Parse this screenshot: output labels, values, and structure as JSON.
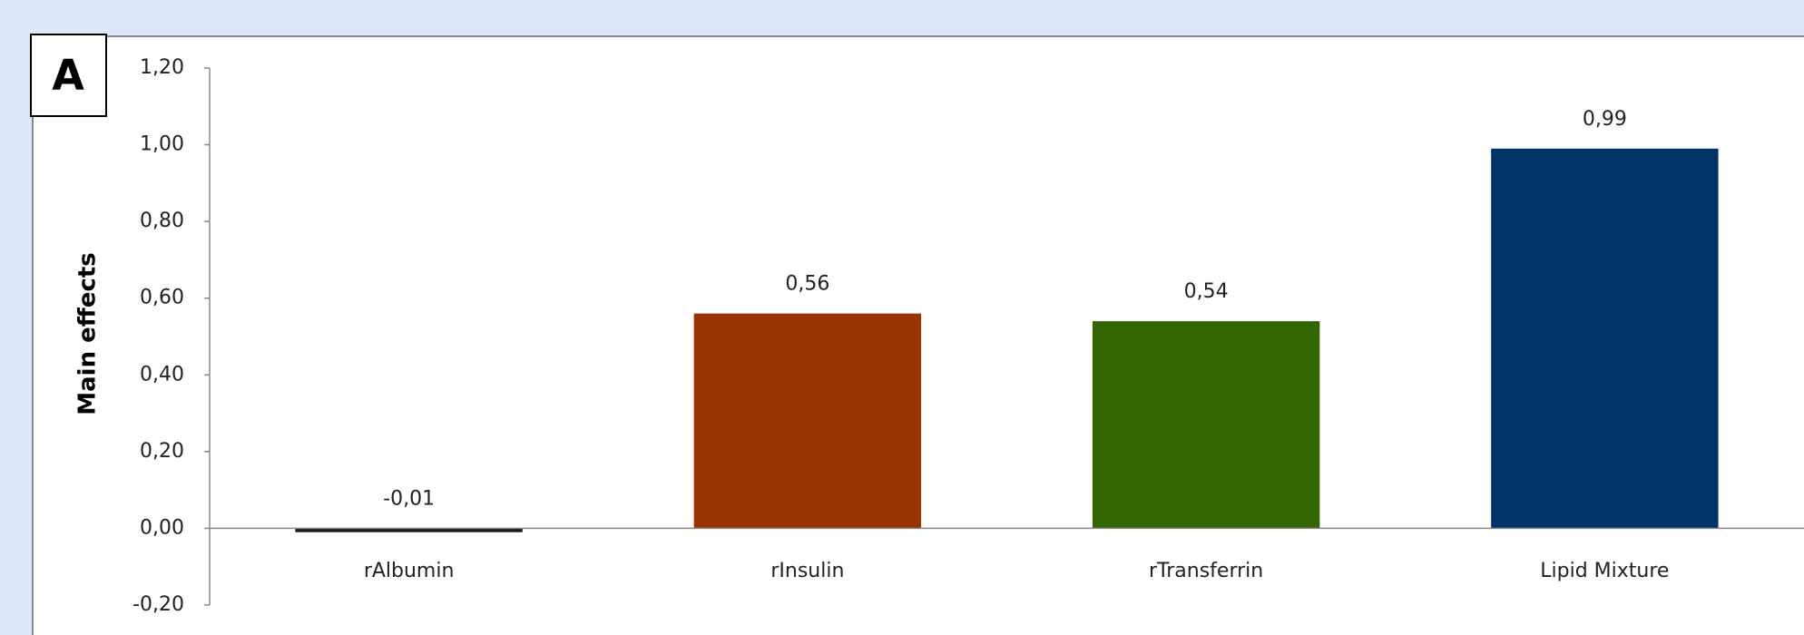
{
  "chart_data": {
    "type": "bar",
    "panel_label": "A",
    "y_label": "Main effects",
    "categories": [
      "rAlbumin",
      "rInsulin",
      "rTransferrin",
      "Lipid Mixture"
    ],
    "values": [
      -0.01,
      0.56,
      0.54,
      0.99
    ],
    "value_labels": [
      "-0,01",
      "0,56",
      "0,54",
      "0,99"
    ],
    "colors": [
      "#1a1a1a",
      "#993300",
      "#336600",
      "#003366"
    ],
    "ylim": [
      -0.2,
      1.2
    ],
    "yticks": [
      {
        "value": -0.2,
        "label": "-0,20"
      },
      {
        "value": 0,
        "label": "0,00"
      },
      {
        "value": 0.2,
        "label": "0,20"
      },
      {
        "value": 0.4,
        "label": "0,40"
      },
      {
        "value": 0.6,
        "label": "0,60"
      },
      {
        "value": 0.8,
        "label": "0,80"
      },
      {
        "value": 1.0,
        "label": "1,00"
      },
      {
        "value": 1.2,
        "label": "1,20"
      }
    ],
    "grid": false
  }
}
